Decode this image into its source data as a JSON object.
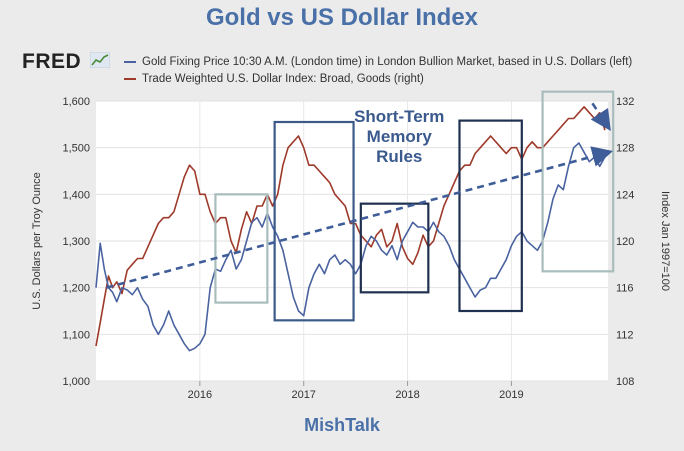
{
  "header": {
    "title": "Gold vs US Dollar Index",
    "logo_text": "FRED",
    "footer": "MishTalk"
  },
  "colors": {
    "gold_series": "#4a63a0",
    "dollar_series": "#9e3a2a",
    "title": "#4a70a8",
    "box_dark": "#1f3050",
    "box_mid": "#3c5a88",
    "box_light": "#a8bcbc",
    "trend_arrow": "#3f5d98"
  },
  "chart_data": {
    "type": "line",
    "title": "Gold vs US Dollar Index",
    "legend_position": "top",
    "grid": true,
    "x_ticks": [
      "2016",
      "2017",
      "2018",
      "2019"
    ],
    "xlim": [
      2015.0,
      2019.93
    ],
    "left_axis": {
      "label": "U.S. Dollars per Troy Ounce",
      "ticks": [
        "1,000",
        "1,100",
        "1,200",
        "1,300",
        "1,400",
        "1,500",
        "1,600"
      ],
      "ylim": [
        1000,
        1600
      ]
    },
    "right_axis": {
      "label": "Index Jan 1997=100",
      "ticks": [
        "108",
        "112",
        "116",
        "120",
        "124",
        "128",
        "132"
      ],
      "ylim": [
        108,
        132
      ]
    },
    "series": [
      {
        "name": "Gold Fixing Price 10:30 A.M. (London time) in London Bullion Market, based in U.S. Dollars (left)",
        "axis": "left",
        "x": [
          2015.0,
          2015.04,
          2015.08,
          2015.12,
          2015.16,
          2015.2,
          2015.25,
          2015.3,
          2015.35,
          2015.4,
          2015.45,
          2015.5,
          2015.55,
          2015.6,
          2015.65,
          2015.7,
          2015.75,
          2015.8,
          2015.85,
          2015.9,
          2015.95,
          2016.0,
          2016.05,
          2016.1,
          2016.15,
          2016.2,
          2016.25,
          2016.3,
          2016.35,
          2016.4,
          2016.45,
          2016.5,
          2016.55,
          2016.6,
          2016.65,
          2016.7,
          2016.75,
          2016.8,
          2016.85,
          2016.9,
          2016.95,
          2017.0,
          2017.05,
          2017.1,
          2017.15,
          2017.2,
          2017.25,
          2017.3,
          2017.35,
          2017.4,
          2017.45,
          2017.5,
          2017.55,
          2017.6,
          2017.65,
          2017.7,
          2017.75,
          2017.8,
          2017.85,
          2017.9,
          2017.95,
          2018.0,
          2018.05,
          2018.1,
          2018.15,
          2018.2,
          2018.25,
          2018.3,
          2018.35,
          2018.4,
          2018.45,
          2018.5,
          2018.55,
          2018.6,
          2018.65,
          2018.7,
          2018.75,
          2018.8,
          2018.85,
          2018.9,
          2018.95,
          2019.0,
          2019.05,
          2019.1,
          2019.15,
          2019.2,
          2019.25,
          2019.3,
          2019.35,
          2019.4,
          2019.45,
          2019.5,
          2019.55,
          2019.6,
          2019.65,
          2019.7,
          2019.75,
          2019.8,
          2019.85,
          2019.9
        ],
        "values": [
          1200,
          1295,
          1240,
          1200,
          1190,
          1170,
          1200,
          1195,
          1185,
          1200,
          1175,
          1160,
          1120,
          1100,
          1120,
          1150,
          1120,
          1100,
          1080,
          1065,
          1070,
          1080,
          1100,
          1200,
          1240,
          1235,
          1260,
          1280,
          1240,
          1260,
          1300,
          1340,
          1350,
          1330,
          1360,
          1330,
          1310,
          1280,
          1230,
          1180,
          1150,
          1140,
          1200,
          1230,
          1250,
          1230,
          1260,
          1270,
          1250,
          1260,
          1250,
          1230,
          1250,
          1290,
          1310,
          1300,
          1280,
          1270,
          1290,
          1260,
          1300,
          1320,
          1340,
          1330,
          1330,
          1320,
          1340,
          1320,
          1310,
          1290,
          1260,
          1240,
          1220,
          1200,
          1180,
          1195,
          1200,
          1220,
          1220,
          1240,
          1260,
          1290,
          1310,
          1320,
          1300,
          1290,
          1280,
          1300,
          1340,
          1390,
          1420,
          1410,
          1460,
          1500,
          1510,
          1490,
          1470,
          1480,
          1460,
          1480
        ]
      },
      {
        "name": "Trade Weighted U.S. Dollar Index: Broad, Goods (right)",
        "axis": "right",
        "x": [
          2015.0,
          2015.04,
          2015.08,
          2015.12,
          2015.16,
          2015.2,
          2015.25,
          2015.3,
          2015.35,
          2015.4,
          2015.45,
          2015.5,
          2015.55,
          2015.6,
          2015.65,
          2015.7,
          2015.75,
          2015.8,
          2015.85,
          2015.9,
          2015.95,
          2016.0,
          2016.05,
          2016.1,
          2016.15,
          2016.2,
          2016.25,
          2016.3,
          2016.35,
          2016.4,
          2016.45,
          2016.5,
          2016.55,
          2016.6,
          2016.65,
          2016.7,
          2016.75,
          2016.8,
          2016.85,
          2016.9,
          2016.95,
          2017.0,
          2017.05,
          2017.1,
          2017.15,
          2017.2,
          2017.25,
          2017.3,
          2017.35,
          2017.4,
          2017.45,
          2017.5,
          2017.55,
          2017.6,
          2017.65,
          2017.7,
          2017.75,
          2017.8,
          2017.85,
          2017.9,
          2017.95,
          2018.0,
          2018.05,
          2018.1,
          2018.15,
          2018.2,
          2018.25,
          2018.3,
          2018.35,
          2018.4,
          2018.45,
          2018.5,
          2018.55,
          2018.6,
          2018.65,
          2018.7,
          2018.75,
          2018.8,
          2018.85,
          2018.9,
          2018.95,
          2019.0,
          2019.05,
          2019.1,
          2019.15,
          2019.2,
          2019.25,
          2019.3,
          2019.35,
          2019.4,
          2019.45,
          2019.5,
          2019.55,
          2019.6,
          2019.65,
          2019.7,
          2019.75,
          2019.8,
          2019.85,
          2019.9
        ],
        "values": [
          111,
          113,
          115,
          117,
          116,
          116.5,
          115.5,
          117.5,
          118,
          118.5,
          118.5,
          119.5,
          120.5,
          121.5,
          122,
          122,
          122.5,
          124,
          125.5,
          126.5,
          126,
          124,
          124,
          122.5,
          121.5,
          122,
          122,
          120,
          119,
          121,
          122.5,
          121.5,
          123,
          123,
          124,
          123,
          124,
          126.5,
          128,
          128.5,
          129,
          128,
          126.5,
          126.5,
          126,
          125.5,
          125,
          124,
          123.5,
          123,
          121.5,
          121.5,
          120.5,
          120,
          119.5,
          120.5,
          121,
          119.5,
          120,
          121.5,
          119.5,
          118.5,
          118,
          119,
          120.5,
          119.5,
          120,
          121.5,
          123,
          124,
          125,
          126,
          126.5,
          126.5,
          127.5,
          128,
          128.5,
          129,
          128.5,
          128,
          127.5,
          128,
          128,
          127,
          128,
          128.5,
          128,
          128,
          128.5,
          129,
          129.5,
          130,
          130.5,
          130.5,
          131,
          131.5,
          131,
          130.5,
          131,
          129.5
        ]
      }
    ],
    "annotations": [
      {
        "text_lines": [
          "Short-Term",
          "Memory",
          "Rules"
        ]
      }
    ],
    "boxes": [
      {
        "x0": 2016.15,
        "x1": 2016.65,
        "y0": 1168,
        "y1": 1400,
        "style": "light"
      },
      {
        "x0": 2016.72,
        "x1": 2017.48,
        "y0": 1130,
        "y1": 1555,
        "style": "mid"
      },
      {
        "x0": 2017.55,
        "x1": 2018.2,
        "y0": 1190,
        "y1": 1380,
        "style": "dark"
      },
      {
        "x0": 2018.5,
        "x1": 2019.1,
        "y0": 1150,
        "y1": 1558,
        "style": "dark"
      },
      {
        "x0": 2019.3,
        "x1": 2019.98,
        "y0": 1235,
        "y1": 1620,
        "style": "light"
      }
    ],
    "trend_arrows": [
      {
        "x0": 2015.1,
        "y0": 1200,
        "x1": 2019.93,
        "y1": 1490
      },
      {
        "x0": 2019.78,
        "y0": 1595,
        "x1": 2019.93,
        "y1": 1545
      }
    ]
  },
  "legend": {
    "gold_label": "Gold Fixing Price 10:30 A.M. (London time) in London Bullion Market, based in U.S. Dollars (left)",
    "dollar_label": "Trade Weighted U.S. Dollar Index: Broad, Goods (right)"
  }
}
